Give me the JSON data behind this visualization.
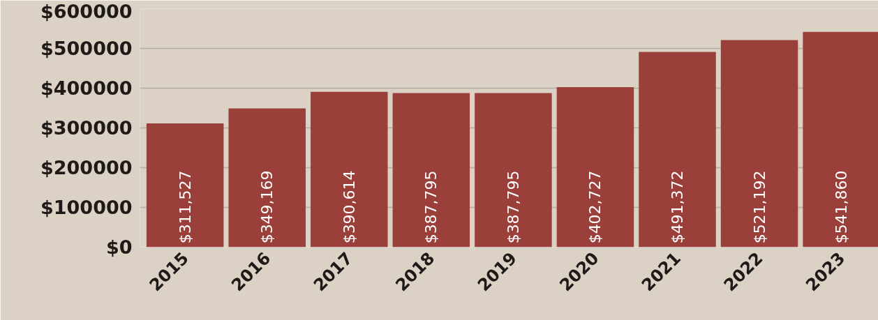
{
  "chart_data": {
    "type": "bar",
    "categories": [
      "2015",
      "2016",
      "2017",
      "2018",
      "2019",
      "2020",
      "2021",
      "2022",
      "2023"
    ],
    "values": [
      311527,
      349169,
      390614,
      387795,
      387795,
      402727,
      491372,
      521192,
      541860
    ],
    "value_labels": [
      "$311,527",
      "$349,169",
      "$390,614",
      "$387,795",
      "$387,795",
      "$402,727",
      "$491,372",
      "$521,192",
      "$541,860"
    ],
    "color": "#9b3f3a",
    "ylim": [
      0,
      600000
    ],
    "yticks": [
      {
        "value": 0,
        "label": "$0"
      },
      {
        "value": 100000,
        "label": "$100000"
      },
      {
        "value": 200000,
        "label": "$200000"
      },
      {
        "value": 300000,
        "label": "$300000"
      },
      {
        "value": 400000,
        "label": "$400000"
      },
      {
        "value": 500000,
        "label": "$500000"
      },
      {
        "value": 600000,
        "label": "$600000"
      }
    ],
    "grid": "y"
  }
}
